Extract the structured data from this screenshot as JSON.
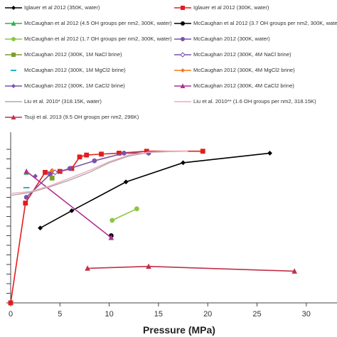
{
  "chart_data": {
    "type": "line",
    "title": "",
    "xlabel": "Pressure (MPa)",
    "ylabel": "",
    "xlim": [
      0,
      32
    ],
    "ylim": [
      0,
      80
    ],
    "x_ticks": [
      "0",
      "5",
      "10",
      "15",
      "20",
      "25",
      "30"
    ],
    "x_tick_values": [
      0,
      5,
      10,
      15,
      20,
      25,
      30
    ],
    "y_grid_values": [
      0,
      5,
      10,
      15,
      20,
      25,
      30,
      35,
      40,
      45,
      50,
      55,
      60,
      65,
      70,
      75,
      80
    ],
    "grid": false,
    "legend": "top",
    "series": [
      {
        "name": "Iglauer et al 2012 (350K, water)",
        "color": "#000000",
        "marker": "diamond",
        "x": [
          3,
          6.2,
          11.7,
          17.5,
          26.3
        ],
        "y": [
          39,
          48,
          63,
          73,
          78
        ]
      },
      {
        "name": "Iglauer et al 2012 (300K, water)",
        "color": "#e41c1c",
        "marker": "square",
        "x": [
          0,
          1.5,
          3.5,
          5,
          6.2,
          7,
          7.7,
          9.2,
          11,
          13.8,
          19.5
        ],
        "y": [
          0,
          52,
          68,
          68.5,
          70,
          76,
          77,
          77.5,
          78,
          79,
          79
        ]
      },
      {
        "name": "McCaughan et al 2012 (4.5 OH groups per nm2, 300K, water)",
        "color": "#2ab34a",
        "marker": "triangle",
        "x": [
          1.6
        ],
        "y": [
          68
        ]
      },
      {
        "name": "McCaughan et al 2012 (3.7 OH groups per nm2, 300K, water)",
        "color": "#000000",
        "marker": "circle",
        "x": [
          10.2
        ],
        "y": [
          35
        ]
      },
      {
        "name": "McCaughan et al 2012 (1.7 OH groups per nm2, 300K, water)",
        "color": "#8cc63e",
        "marker": "circle",
        "x": [
          10.3,
          12.8
        ],
        "y": [
          43,
          49
        ]
      },
      {
        "name": "McCaughan 2012 (300K, water)",
        "color": "#7a52a8",
        "marker": "circle",
        "x": [
          1.6,
          4,
          6,
          8.5,
          11.5,
          14
        ],
        "y": [
          55,
          67,
          70,
          74,
          78,
          78
        ]
      },
      {
        "name": "McCaughan 2012 (300K, 1M NaCl brine)",
        "color": "#7f9d2e",
        "marker": "square",
        "x": [
          4.2
        ],
        "y": [
          65
        ]
      },
      {
        "name": "McCaughan 2012 (300K, 4M NaCl brine)",
        "color": "#7a52a8",
        "marker": "open-diamond",
        "x": [
          4.5
        ],
        "y": [
          68
        ]
      },
      {
        "name": "McCaughan 2012 (300K, 1M MgCl2 brine)",
        "color": "#22b5cf",
        "marker": "dash",
        "x": [
          1.6
        ],
        "y": [
          60
        ]
      },
      {
        "name": "McCaughan 2012 (300K, 4M MgCl2 brine)",
        "color": "#f37a1f",
        "marker": "diamond",
        "x": [
          4.2
        ],
        "y": [
          69
        ]
      },
      {
        "name": "McCaughan 2012 (300K, 1M CaCl2 brine)",
        "color": "#7a52a8",
        "marker": "diamond",
        "x": [
          2.5
        ],
        "y": [
          66
        ]
      },
      {
        "name": "McCaughan 2012 (300K, 4M CaCl2 brine)",
        "color": "#b03090",
        "marker": "triangle",
        "x": [
          1.6,
          10.2
        ],
        "y": [
          68.5,
          34
        ]
      },
      {
        "name": "Liu et al. 2010* (318.15K, water)",
        "color": "#aaaaaa",
        "marker": "line",
        "x": [
          0,
          2,
          4,
          6,
          8,
          10,
          12,
          14,
          16,
          18
        ],
        "y": [
          56,
          57.5,
          60.5,
          64,
          68,
          73,
          76.5,
          78.3,
          78.8,
          79
        ]
      },
      {
        "name": "Liu et al. 2010** (1.6 OH groups per nm2, 318.15K)",
        "color": "#f0a8bc",
        "marker": "line",
        "x": [
          0,
          2,
          4,
          6,
          8,
          10,
          12,
          14,
          16,
          18
        ],
        "y": [
          57,
          58,
          61,
          65,
          69,
          73.5,
          77,
          78.5,
          79,
          79
        ]
      },
      {
        "name": "Tsuji et al. 2013 (9.5 OH groups per nm2, 296K)",
        "color": "#c0304a",
        "marker": "triangle",
        "x": [
          7.8,
          14,
          28.8
        ],
        "y": [
          18,
          19,
          16.5
        ]
      }
    ]
  }
}
